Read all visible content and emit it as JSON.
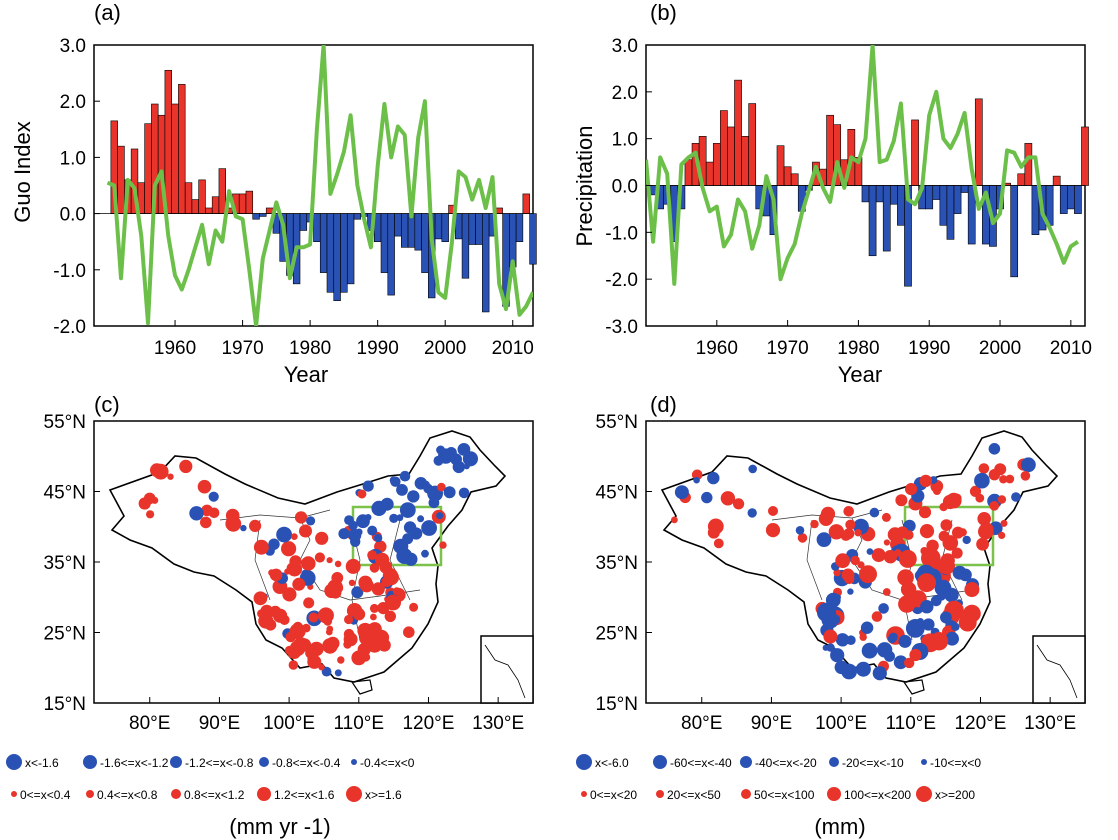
{
  "panels": {
    "a": {
      "label": "(a)",
      "ylabel": "Guo Index",
      "xlabel": "Year"
    },
    "b": {
      "label": "(b)",
      "ylabel": "Precipitation",
      "xlabel": "Year"
    },
    "c": {
      "label": "(c)"
    },
    "d": {
      "label": "(d)"
    }
  },
  "legend_c": {
    "unit": "(mm yr -1)",
    "neg": [
      "x<-1.6",
      "-1.6<=x<-1.2",
      "-1.2<=x<-0.8",
      "-0.8<=x<-0.4",
      "-0.4<=x<0"
    ],
    "pos": [
      "0<=x<0.4",
      "0.4<=x<0.8",
      "0.8<=x<1.2",
      "1.2<=x<1.6",
      "x>=1.6"
    ]
  },
  "legend_d": {
    "unit": "(mm)",
    "neg": [
      "x<-6.0",
      "-60<=x<-40",
      "-40<=x<-20",
      "-20<=x<-10",
      "-10<=x<0"
    ],
    "pos": [
      "0<=x<20",
      "20<=x<50",
      "50<=x<100",
      "100<=x<200",
      "x>=200"
    ]
  },
  "colors": {
    "positive": "#e8342a",
    "negative": "#2a52b5",
    "line": "#6cc04a",
    "box": "#7cc24a"
  },
  "chart_data": [
    {
      "type": "bar",
      "panel": "a",
      "title": "",
      "xlabel": "Year",
      "ylabel": "Guo Index",
      "xlim": [
        1948,
        2013
      ],
      "ylim": [
        -2.0,
        3.0
      ],
      "xticks": [
        1960,
        1970,
        1980,
        1990,
        2000,
        2010
      ],
      "yticks": [
        "-2.0",
        "-1.0",
        "0.0",
        "1.0",
        "2.0",
        "3.0"
      ],
      "x_start": 1951,
      "values": [
        1.65,
        1.2,
        0.6,
        1.15,
        0.55,
        1.6,
        1.95,
        1.75,
        2.55,
        1.95,
        2.3,
        0.55,
        0.25,
        0.6,
        0.1,
        0.3,
        0.8,
        0.1,
        0.35,
        0.35,
        0.4,
        -0.1,
        -0.05,
        0.1,
        -0.35,
        -0.85,
        -1.1,
        -1.25,
        -0.3,
        -0.15,
        -0.5,
        -1.05,
        -1.4,
        -1.55,
        -1.4,
        -1.25,
        -0.1,
        -0.05,
        -0.3,
        -0.5,
        -1.05,
        -1.45,
        -0.4,
        -0.6,
        -0.6,
        -0.65,
        -1.05,
        -1.5,
        -0.45,
        -0.5,
        0.15,
        -0.45,
        -1.15,
        -0.55,
        -0.55,
        -1.75,
        -0.4,
        0.1,
        -1.65,
        -0.95,
        -0.5,
        0.35,
        -0.9
      ],
      "series": [
        {
          "values": [
            0.55,
            0.5,
            -1.15,
            0.6,
            0.45,
            -0.4,
            -1.95,
            0.5,
            0.75,
            -0.4,
            -1.1,
            -1.35,
            -1.0,
            -0.6,
            -0.2,
            -0.9,
            -0.3,
            -0.5,
            0.4,
            -0.05,
            -0.1,
            -1.0,
            -2.0,
            -0.8,
            -0.3,
            0.2,
            -0.2,
            -1.15,
            -0.6,
            -0.6,
            -0.55,
            1.5,
            3.0,
            0.35,
            0.7,
            1.1,
            1.75,
            0.5,
            -0.1,
            -0.6,
            0.85,
            1.95,
            1.0,
            1.55,
            1.4,
            -0.05,
            1.35,
            2.0,
            -0.45,
            -1.4,
            -1.5,
            -0.5,
            0.75,
            0.65,
            0.25,
            0.6,
            0.1,
            0.65,
            -1.25,
            -1.7,
            -0.85,
            -1.8,
            -1.65,
            -1.4
          ]
        }
      ]
    },
    {
      "type": "bar",
      "panel": "b",
      "title": "",
      "xlabel": "Year",
      "ylabel": "Precipitation",
      "xlim": [
        1950,
        2012
      ],
      "ylim": [
        -3.0,
        3.0
      ],
      "xticks": [
        1960,
        1970,
        1980,
        1990,
        2000,
        2010
      ],
      "yticks": [
        "-3.0",
        "-2.0",
        "-1.0",
        "0.0",
        "1.0",
        "2.0",
        "3.0"
      ],
      "x_start": 1951,
      "values": [
        -0.2,
        -0.5,
        -0.4,
        -1.2,
        -0.5,
        0.55,
        0.9,
        1.05,
        0.5,
        0.9,
        1.6,
        1.25,
        2.25,
        1.05,
        1.75,
        -0.5,
        -0.65,
        -1.05,
        0.85,
        0.4,
        0.25,
        -0.55,
        -0.1,
        0.5,
        0.35,
        1.5,
        1.3,
        0.55,
        1.2,
        0.6,
        -0.35,
        -1.5,
        -0.35,
        -1.4,
        -0.4,
        -0.85,
        -2.15,
        1.4,
        -0.5,
        -0.5,
        -0.3,
        -0.85,
        -1.15,
        -0.6,
        -0.15,
        -1.25,
        1.85,
        -1.25,
        -1.3,
        -0.5,
        0.05,
        -1.95,
        0.25,
        0.9,
        -1.05,
        -0.95,
        -0.85,
        0.2,
        -0.6,
        -0.5,
        -0.6,
        1.25
      ],
      "series": [
        {
          "values": [
            0.55,
            -1.2,
            0.6,
            0.25,
            -2.1,
            0.45,
            0.6,
            0.7,
            -0.05,
            -0.55,
            -0.45,
            -1.3,
            -1.05,
            -0.3,
            -0.55,
            -1.35,
            -0.85,
            0.2,
            -0.3,
            -2.0,
            -1.55,
            -1.25,
            -0.6,
            -0.1,
            0.4,
            -0.05,
            -0.35,
            0.5,
            -0.05,
            0.6,
            0.5,
            1.0,
            3.0,
            0.5,
            0.55,
            0.95,
            1.75,
            -0.3,
            -0.4,
            -0.05,
            1.5,
            2.0,
            1.0,
            0.8,
            1.1,
            1.55,
            0.35,
            -0.5,
            -0.15,
            -0.8,
            -0.6,
            0.75,
            0.7,
            0.4,
            0.6,
            0.6,
            -0.6,
            -0.9,
            -1.25,
            -1.65,
            -1.3,
            -1.2
          ]
        }
      ]
    },
    {
      "type": "scatter",
      "panel": "c",
      "title": "",
      "xlim": [
        72,
        135
      ],
      "ylim": [
        15,
        55
      ],
      "xticks": [
        "80°E",
        "90°E",
        "100°E",
        "110°E",
        "120°E",
        "130°E"
      ],
      "yticks": [
        "15°N",
        "25°N",
        "35°N",
        "45°N",
        "55°N"
      ],
      "region_box": {
        "lon": [
          110,
          121
        ],
        "lat": [
          35,
          43
        ]
      }
    },
    {
      "type": "scatter",
      "panel": "d",
      "title": "",
      "xlim": [
        72,
        135
      ],
      "ylim": [
        15,
        55
      ],
      "xticks": [
        "80°E",
        "90°E",
        "100°E",
        "110°E",
        "120°E",
        "130°E"
      ],
      "yticks": [
        "15°N",
        "25°N",
        "35°N",
        "45°N",
        "55°N"
      ],
      "region_box": {
        "lon": [
          110,
          121
        ],
        "lat": [
          35,
          43
        ]
      }
    }
  ]
}
